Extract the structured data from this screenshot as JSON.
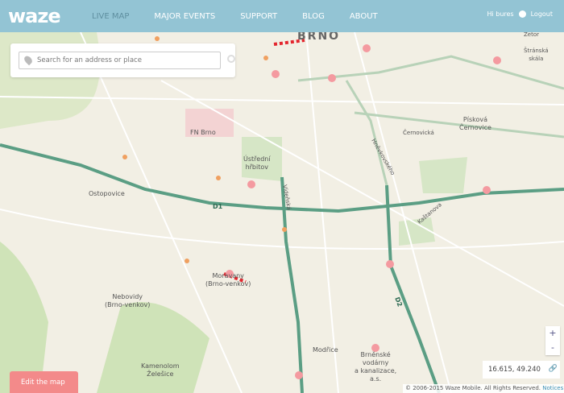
{
  "header": {
    "logo": "waze",
    "nav": [
      "LIVE MAP",
      "MAJOR EVENTS",
      "SUPPORT",
      "BLOG",
      "ABOUT"
    ],
    "active": "LIVE MAP",
    "greeting": "Hi bures",
    "logout": "Logout"
  },
  "search": {
    "placeholder": "Search for an address or place"
  },
  "map": {
    "city": "BRNO",
    "labels": [
      "Ostopovice",
      "Nebovidy\n(Brno-venkov)",
      "Moravany\n(Brno-venkov)",
      "FN Brno",
      "Ústřední\nhřbitov",
      "Modřice",
      "Brněnské\nvodárny\na kanalizace,\na.s.",
      "Kamenolom\nŽelešice",
      "Písková\nČernovice",
      "Černovická",
      "Štránská\nskála",
      "Zetor",
      "Vídeňská",
      "Hněvkovského",
      "Kaštanova",
      "D1",
      "D2"
    ],
    "road_color": "#5b9e84",
    "colors": {
      "alert": "#f49aa0",
      "jam": "#e3262e"
    }
  },
  "controls": {
    "zoom_in": "+",
    "zoom_out": "-",
    "coords": "16.615, 49.240"
  },
  "footer": {
    "copyright": "© 2006-2015 Waze Mobile. All Rights Reserved.",
    "notices": "Notices",
    "edit": "Edit the map"
  }
}
